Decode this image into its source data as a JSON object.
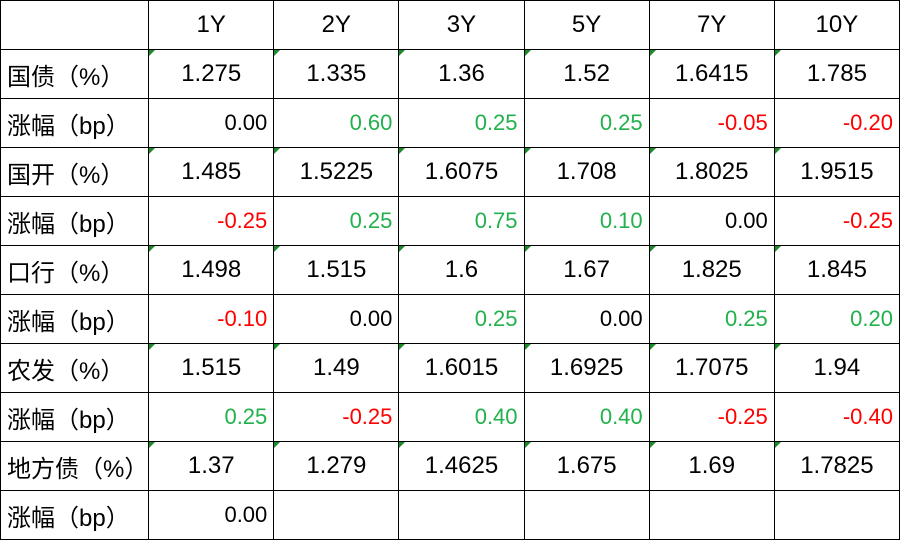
{
  "colors": {
    "positive": "#22b14c",
    "negative": "#ff0000",
    "neutral": "#000000",
    "cell_marker": "#1a8a2a"
  },
  "headers": [
    "1Y",
    "2Y",
    "3Y",
    "5Y",
    "7Y",
    "10Y"
  ],
  "rows": [
    {
      "label": "国债（%）",
      "values": [
        "1.275",
        "1.335",
        "1.36",
        "1.52",
        "1.6415",
        "1.785"
      ],
      "kind": "yield"
    },
    {
      "label": "涨幅（bp）",
      "values": [
        "0.00",
        "0.60",
        "0.25",
        "0.25",
        "-0.05",
        "-0.20"
      ],
      "kind": "change"
    },
    {
      "label": "国开（%）",
      "values": [
        "1.485",
        "1.5225",
        "1.6075",
        "1.708",
        "1.8025",
        "1.9515"
      ],
      "kind": "yield"
    },
    {
      "label": "涨幅（bp）",
      "values": [
        "-0.25",
        "0.25",
        "0.75",
        "0.10",
        "0.00",
        "-0.25"
      ],
      "kind": "change"
    },
    {
      "label": "口行（%）",
      "values": [
        "1.498",
        "1.515",
        "1.6",
        "1.67",
        "1.825",
        "1.845"
      ],
      "kind": "yield"
    },
    {
      "label": "涨幅（bp）",
      "values": [
        "-0.10",
        "0.00",
        "0.25",
        "0.00",
        "0.25",
        "0.20"
      ],
      "kind": "change"
    },
    {
      "label": "农发（%）",
      "values": [
        "1.515",
        "1.49",
        "1.6015",
        "1.6925",
        "1.7075",
        "1.94"
      ],
      "kind": "yield"
    },
    {
      "label": "涨幅（bp）",
      "values": [
        "0.25",
        "-0.25",
        "0.40",
        "0.40",
        "-0.25",
        "-0.40"
      ],
      "kind": "change"
    },
    {
      "label": "地方债（%）",
      "values": [
        "1.37",
        "1.279",
        "1.4625",
        "1.675",
        "1.69",
        "1.7825"
      ],
      "kind": "yield"
    },
    {
      "label": "涨幅（bp）",
      "values": [
        "0.00",
        "",
        "",
        "",
        "",
        ""
      ],
      "kind": "change"
    }
  ]
}
